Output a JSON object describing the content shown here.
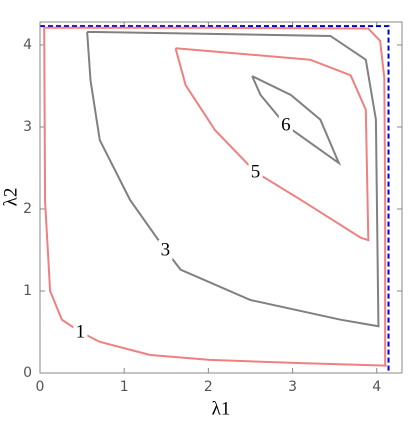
{
  "chart_data": {
    "type": "contour",
    "x_label": "λ1",
    "y_label": "λ2",
    "xlim": [
      0,
      4.3
    ],
    "ylim": [
      0,
      4.28
    ],
    "xticks": [
      0,
      1,
      2,
      3,
      4
    ],
    "yticks": [
      0,
      1,
      2,
      3,
      4
    ],
    "series": [
      {
        "color": "#0000cc",
        "dashed": true,
        "x": [
          0,
          4.14,
          4.14
        ],
        "y": [
          4.23,
          4.23,
          0
        ]
      },
      {
        "color": "#f08080",
        "x": [
          4.1,
          4.1,
          4.09,
          4.04,
          3.9,
          2,
          0.05,
          0.06,
          0.12,
          0.26,
          0.48,
          0.71,
          1.31,
          2.02,
          3.1,
          4.12
        ],
        "y": [
          0.09,
          2.1,
          3.6,
          4.05,
          4.2,
          4.21,
          4.21,
          2.1,
          1.0,
          0.65,
          0.5,
          0.38,
          0.22,
          0.16,
          0.12,
          0.09
        ]
      },
      {
        "color": "#808080",
        "x": [
          0.56,
          3.45,
          3.87,
          3.99,
          4.02,
          3.57,
          2.5,
          1.67,
          1.49,
          1.07,
          0.71,
          0.6,
          0.56
        ],
        "y": [
          4.16,
          4.11,
          3.82,
          3.09,
          0.57,
          0.65,
          0.89,
          1.26,
          1.5,
          2.11,
          2.84,
          3.57,
          4.16
        ]
      },
      {
        "color": "#f08080",
        "x": [
          1.61,
          3.21,
          3.69,
          3.87,
          3.9,
          3.81,
          3.1,
          2.56,
          2.08,
          1.73,
          1.61
        ],
        "y": [
          3.96,
          3.82,
          3.63,
          3.21,
          1.62,
          1.65,
          2.11,
          2.45,
          2.96,
          3.51,
          3.96
        ]
      },
      {
        "color": "#808080",
        "x": [
          2.52,
          2.98,
          3.33,
          3.55,
          3.33,
          2.92,
          2.62,
          2.52
        ],
        "y": [
          3.62,
          3.39,
          3.09,
          2.56,
          2.72,
          3.02,
          3.39,
          3.62
        ]
      }
    ],
    "annotations": [
      {
        "text": "1",
        "x": 0.48,
        "y": 0.5
      },
      {
        "text": "3",
        "x": 1.49,
        "y": 1.5
      },
      {
        "text": "5",
        "x": 2.56,
        "y": 2.45
      },
      {
        "text": "6",
        "x": 2.92,
        "y": 3.02
      }
    ]
  }
}
